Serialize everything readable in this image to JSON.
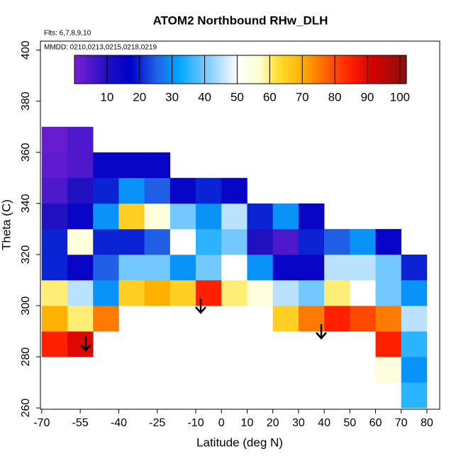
{
  "chart_data": {
    "type": "heatmap",
    "title": "ATOM2 Northbound RHw_DLH",
    "subtitle_lines": [
      "Flts: 6,7,8,9,10",
      "MMDD: 0210,0213,0215,0218,0219"
    ],
    "x_label": "Latitude (deg N)",
    "y_label": "Theta (C)",
    "xlim": [
      -70.5,
      85
    ],
    "ylim": [
      259.5,
      403.5
    ],
    "xticks": [
      -70,
      -55,
      -40,
      -25,
      -10,
      0,
      10,
      20,
      30,
      40,
      50,
      60,
      70,
      80
    ],
    "yticks": [
      260,
      280,
      300,
      320,
      340,
      360,
      380,
      400
    ],
    "x": [
      -65,
      -55,
      -45,
      -35,
      -25,
      -15,
      -5,
      5,
      15,
      25,
      35,
      45,
      55,
      65,
      75
    ],
    "y": [
      265,
      275,
      285,
      295,
      305,
      315,
      325,
      335,
      345,
      355,
      365
    ],
    "values": [
      [
        null,
        null,
        null,
        null,
        null,
        null,
        null,
        null,
        null,
        null,
        null,
        null,
        null,
        null,
        35
      ],
      [
        null,
        null,
        null,
        null,
        null,
        null,
        null,
        null,
        null,
        null,
        null,
        null,
        null,
        55,
        30
      ],
      [
        85,
        90,
        null,
        null,
        null,
        null,
        null,
        null,
        null,
        null,
        null,
        null,
        null,
        85,
        35
      ],
      [
        70,
        60,
        75,
        null,
        null,
        null,
        null,
        null,
        null,
        65,
        75,
        85,
        80,
        75,
        45
      ],
      [
        60,
        45,
        30,
        65,
        70,
        65,
        85,
        60,
        55,
        45,
        40,
        60,
        50,
        40,
        30
      ],
      [
        20,
        15,
        25,
        40,
        40,
        30,
        40,
        50,
        30,
        15,
        15,
        45,
        45,
        40,
        20
      ],
      [
        20,
        55,
        20,
        20,
        25,
        50,
        35,
        40,
        10,
        5,
        20,
        25,
        30,
        15,
        null
      ],
      [
        10,
        15,
        30,
        65,
        55,
        40,
        30,
        45,
        20,
        30,
        15,
        null,
        null,
        null,
        null
      ],
      [
        5,
        10,
        20,
        30,
        25,
        15,
        20,
        15,
        null,
        null,
        null,
        null,
        null,
        null,
        null
      ],
      [
        3,
        5,
        15,
        15,
        15,
        null,
        null,
        null,
        null,
        null,
        null,
        null,
        null,
        null,
        null
      ],
      [
        2,
        5,
        null,
        null,
        null,
        null,
        null,
        null,
        null,
        null,
        null,
        null,
        null,
        null,
        null
      ]
    ],
    "colorbar": {
      "lim": [
        0,
        102
      ],
      "ticks": [
        10,
        20,
        30,
        40,
        50,
        60,
        70,
        80,
        90,
        100
      ]
    }
  }
}
